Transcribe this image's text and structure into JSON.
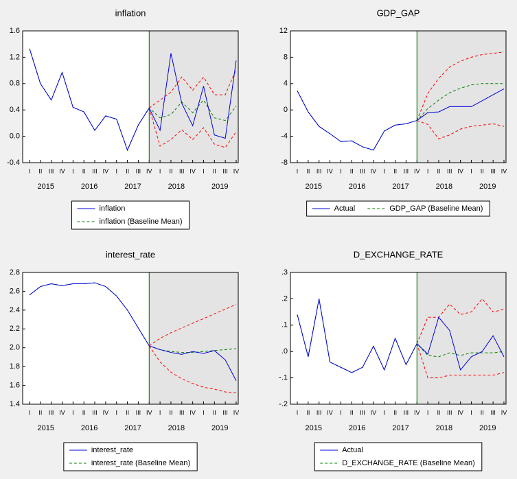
{
  "chart_data": [
    {
      "type": "line",
      "title": "inflation",
      "categories": [
        "I",
        "II",
        "III",
        "IV",
        "I",
        "II",
        "III",
        "IV",
        "I",
        "II",
        "III",
        "IV",
        "I",
        "II",
        "III",
        "IV",
        "I",
        "II",
        "III",
        "IV"
      ],
      "years": [
        "2015",
        "2016",
        "2017",
        "2018",
        "2019"
      ],
      "ylim": [
        -0.4,
        1.6
      ],
      "yticks": [
        -0.4,
        {
          "value": 0,
          "label": "0.0"
        },
        0.4,
        0.8,
        1.2,
        1.6
      ],
      "legend_columns": 1,
      "series": [
        {
          "name": "inflation",
          "color": "#0000dd",
          "dash": false,
          "values": [
            1.33,
            0.8,
            0.55,
            0.97,
            0.44,
            0.37,
            0.09,
            0.31,
            0.26,
            -0.21,
            0.17,
            0.43,
            0.09,
            1.26,
            0.5,
            0.16,
            0.76,
            0.02,
            -0.03,
            1.15
          ]
        },
        {
          "name": "inflation (Baseline Mean)",
          "color": "#008000",
          "dash": true,
          "values": [
            1.33,
            0.8,
            0.55,
            0.97,
            0.44,
            0.37,
            0.09,
            0.31,
            0.26,
            -0.21,
            0.17,
            0.43,
            0.28,
            0.33,
            0.52,
            0.36,
            0.55,
            0.28,
            0.24,
            0.46
          ]
        }
      ],
      "bands": [
        {
          "color": "#ff0000",
          "values": [
            null,
            null,
            null,
            null,
            null,
            null,
            null,
            null,
            null,
            null,
            null,
            0.43,
            0.55,
            0.67,
            0.9,
            0.7,
            0.9,
            0.63,
            0.63,
            1.02
          ]
        },
        {
          "color": "#ff0000",
          "values": [
            null,
            null,
            null,
            null,
            null,
            null,
            null,
            null,
            null,
            null,
            null,
            0.43,
            -0.15,
            -0.05,
            0.1,
            -0.05,
            0.13,
            -0.12,
            -0.17,
            0.07
          ]
        }
      ]
    },
    {
      "type": "line",
      "title": "GDP_GAP",
      "categories": [
        "I",
        "II",
        "III",
        "IV",
        "I",
        "II",
        "III",
        "IV",
        "I",
        "II",
        "III",
        "IV",
        "I",
        "II",
        "III",
        "IV",
        "I",
        "II",
        "III",
        "IV"
      ],
      "years": [
        "2015",
        "2016",
        "2017",
        "2018",
        "2019"
      ],
      "ylim": [
        -8,
        12
      ],
      "yticks": [
        -8,
        -4,
        0,
        4,
        8,
        12
      ],
      "legend_columns": 2,
      "series": [
        {
          "name": "Actual",
          "color": "#0000dd",
          "dash": false,
          "values": [
            2.9,
            -0.3,
            -2.5,
            -3.6,
            -4.8,
            -4.7,
            -5.6,
            -6.1,
            -3.2,
            -2.3,
            -2.1,
            -1.6,
            -0.4,
            -0.3,
            0.5,
            0.5,
            0.5,
            1.4,
            2.3,
            3.2
          ]
        },
        {
          "name": "GDP_GAP (Baseline Mean)",
          "color": "#008000",
          "dash": true,
          "values": [
            2.9,
            -0.3,
            -2.5,
            -3.6,
            -4.8,
            -4.7,
            -5.6,
            -6.1,
            -3.2,
            -2.3,
            -2.1,
            -1.6,
            0.2,
            1.5,
            2.6,
            3.3,
            3.8,
            4.0,
            4.0,
            4.0
          ]
        }
      ],
      "bands": [
        {
          "color": "#ff0000",
          "values": [
            null,
            null,
            null,
            null,
            null,
            null,
            null,
            null,
            null,
            null,
            null,
            -1.6,
            2.5,
            4.8,
            6.5,
            7.4,
            8.0,
            8.4,
            8.6,
            8.8
          ]
        },
        {
          "color": "#ff0000",
          "values": [
            null,
            null,
            null,
            null,
            null,
            null,
            null,
            null,
            null,
            null,
            null,
            -1.6,
            -2.2,
            -4.4,
            -3.8,
            -2.9,
            -2.5,
            -2.3,
            -2.1,
            -2.5
          ]
        }
      ]
    },
    {
      "type": "line",
      "title": "interest_rate",
      "categories": [
        "I",
        "II",
        "III",
        "IV",
        "I",
        "II",
        "III",
        "IV",
        "I",
        "II",
        "III",
        "IV",
        "I",
        "II",
        "III",
        "IV",
        "I",
        "II",
        "III",
        "IV"
      ],
      "years": [
        "2015",
        "2016",
        "2017",
        "2018",
        "2019"
      ],
      "ylim": [
        1.4,
        2.8
      ],
      "yticks": [
        1.4,
        1.6,
        1.8,
        {
          "value": 2,
          "label": "2.0"
        },
        2.2,
        2.4,
        2.6,
        2.8
      ],
      "legend_columns": 1,
      "series": [
        {
          "name": "interest_rate",
          "color": "#0000dd",
          "dash": false,
          "values": [
            2.56,
            2.65,
            2.68,
            2.66,
            2.68,
            2.68,
            2.69,
            2.65,
            2.55,
            2.4,
            2.21,
            2.02,
            1.98,
            1.95,
            1.93,
            1.96,
            1.94,
            1.97,
            1.87,
            1.65
          ]
        },
        {
          "name": "interest_rate (Baseline Mean)",
          "color": "#008000",
          "dash": true,
          "values": [
            2.56,
            2.65,
            2.68,
            2.66,
            2.68,
            2.68,
            2.69,
            2.65,
            2.55,
            2.4,
            2.21,
            2.02,
            1.98,
            1.96,
            1.95,
            1.95,
            1.96,
            1.97,
            1.98,
            1.99
          ]
        }
      ],
      "bands": [
        {
          "color": "#ff0000",
          "values": [
            null,
            null,
            null,
            null,
            null,
            null,
            null,
            null,
            null,
            null,
            null,
            2.02,
            2.1,
            2.16,
            2.21,
            2.26,
            2.31,
            2.36,
            2.41,
            2.46
          ]
        },
        {
          "color": "#ff0000",
          "values": [
            null,
            null,
            null,
            null,
            null,
            null,
            null,
            null,
            null,
            null,
            null,
            2.02,
            1.85,
            1.74,
            1.67,
            1.62,
            1.58,
            1.56,
            1.53,
            1.52
          ]
        }
      ]
    },
    {
      "type": "line",
      "title": "D_EXCHANGE_RATE",
      "categories": [
        "I",
        "II",
        "III",
        "IV",
        "I",
        "II",
        "III",
        "IV",
        "I",
        "II",
        "III",
        "IV",
        "I",
        "II",
        "III",
        "IV",
        "I",
        "II",
        "III",
        "IV"
      ],
      "years": [
        "2015",
        "2016",
        "2017",
        "2018",
        "2019"
      ],
      "ylim": [
        -0.2,
        0.3
      ],
      "yticks": [
        {
          "value": -0.2,
          "label": "-.2"
        },
        {
          "value": -0.1,
          "label": "-.1"
        },
        {
          "value": 0,
          "label": ".0"
        },
        {
          "value": 0.1,
          "label": ".1"
        },
        {
          "value": 0.2,
          "label": ".2"
        },
        {
          "value": 0.3,
          "label": ".3"
        }
      ],
      "legend_columns": 1,
      "series": [
        {
          "name": "Actual",
          "color": "#0000dd",
          "dash": false,
          "values": [
            0.14,
            -0.02,
            0.2,
            -0.04,
            -0.06,
            -0.08,
            -0.06,
            0.02,
            -0.07,
            0.05,
            -0.05,
            0.03,
            -0.01,
            0.13,
            0.08,
            -0.07,
            -0.02,
            0.0,
            0.06,
            -0.02
          ]
        },
        {
          "name": "D_EXCHANGE_RATE (Baseline Mean)",
          "color": "#008000",
          "dash": true,
          "values": [
            0.14,
            -0.02,
            0.2,
            -0.04,
            -0.06,
            -0.08,
            -0.06,
            0.02,
            -0.07,
            0.05,
            -0.05,
            0.03,
            -0.015,
            -0.02,
            -0.005,
            -0.015,
            -0.005,
            -0.005,
            -0.005,
            0.0
          ]
        }
      ],
      "bands": [
        {
          "color": "#ff0000",
          "values": [
            null,
            null,
            null,
            null,
            null,
            null,
            null,
            null,
            null,
            null,
            null,
            0.03,
            0.13,
            0.13,
            0.18,
            0.14,
            0.15,
            0.2,
            0.15,
            0.16
          ]
        },
        {
          "color": "#ff0000",
          "values": [
            null,
            null,
            null,
            null,
            null,
            null,
            null,
            null,
            null,
            null,
            null,
            0.03,
            -0.1,
            -0.1,
            -0.09,
            -0.09,
            -0.09,
            -0.09,
            -0.09,
            -0.08
          ]
        }
      ]
    }
  ]
}
